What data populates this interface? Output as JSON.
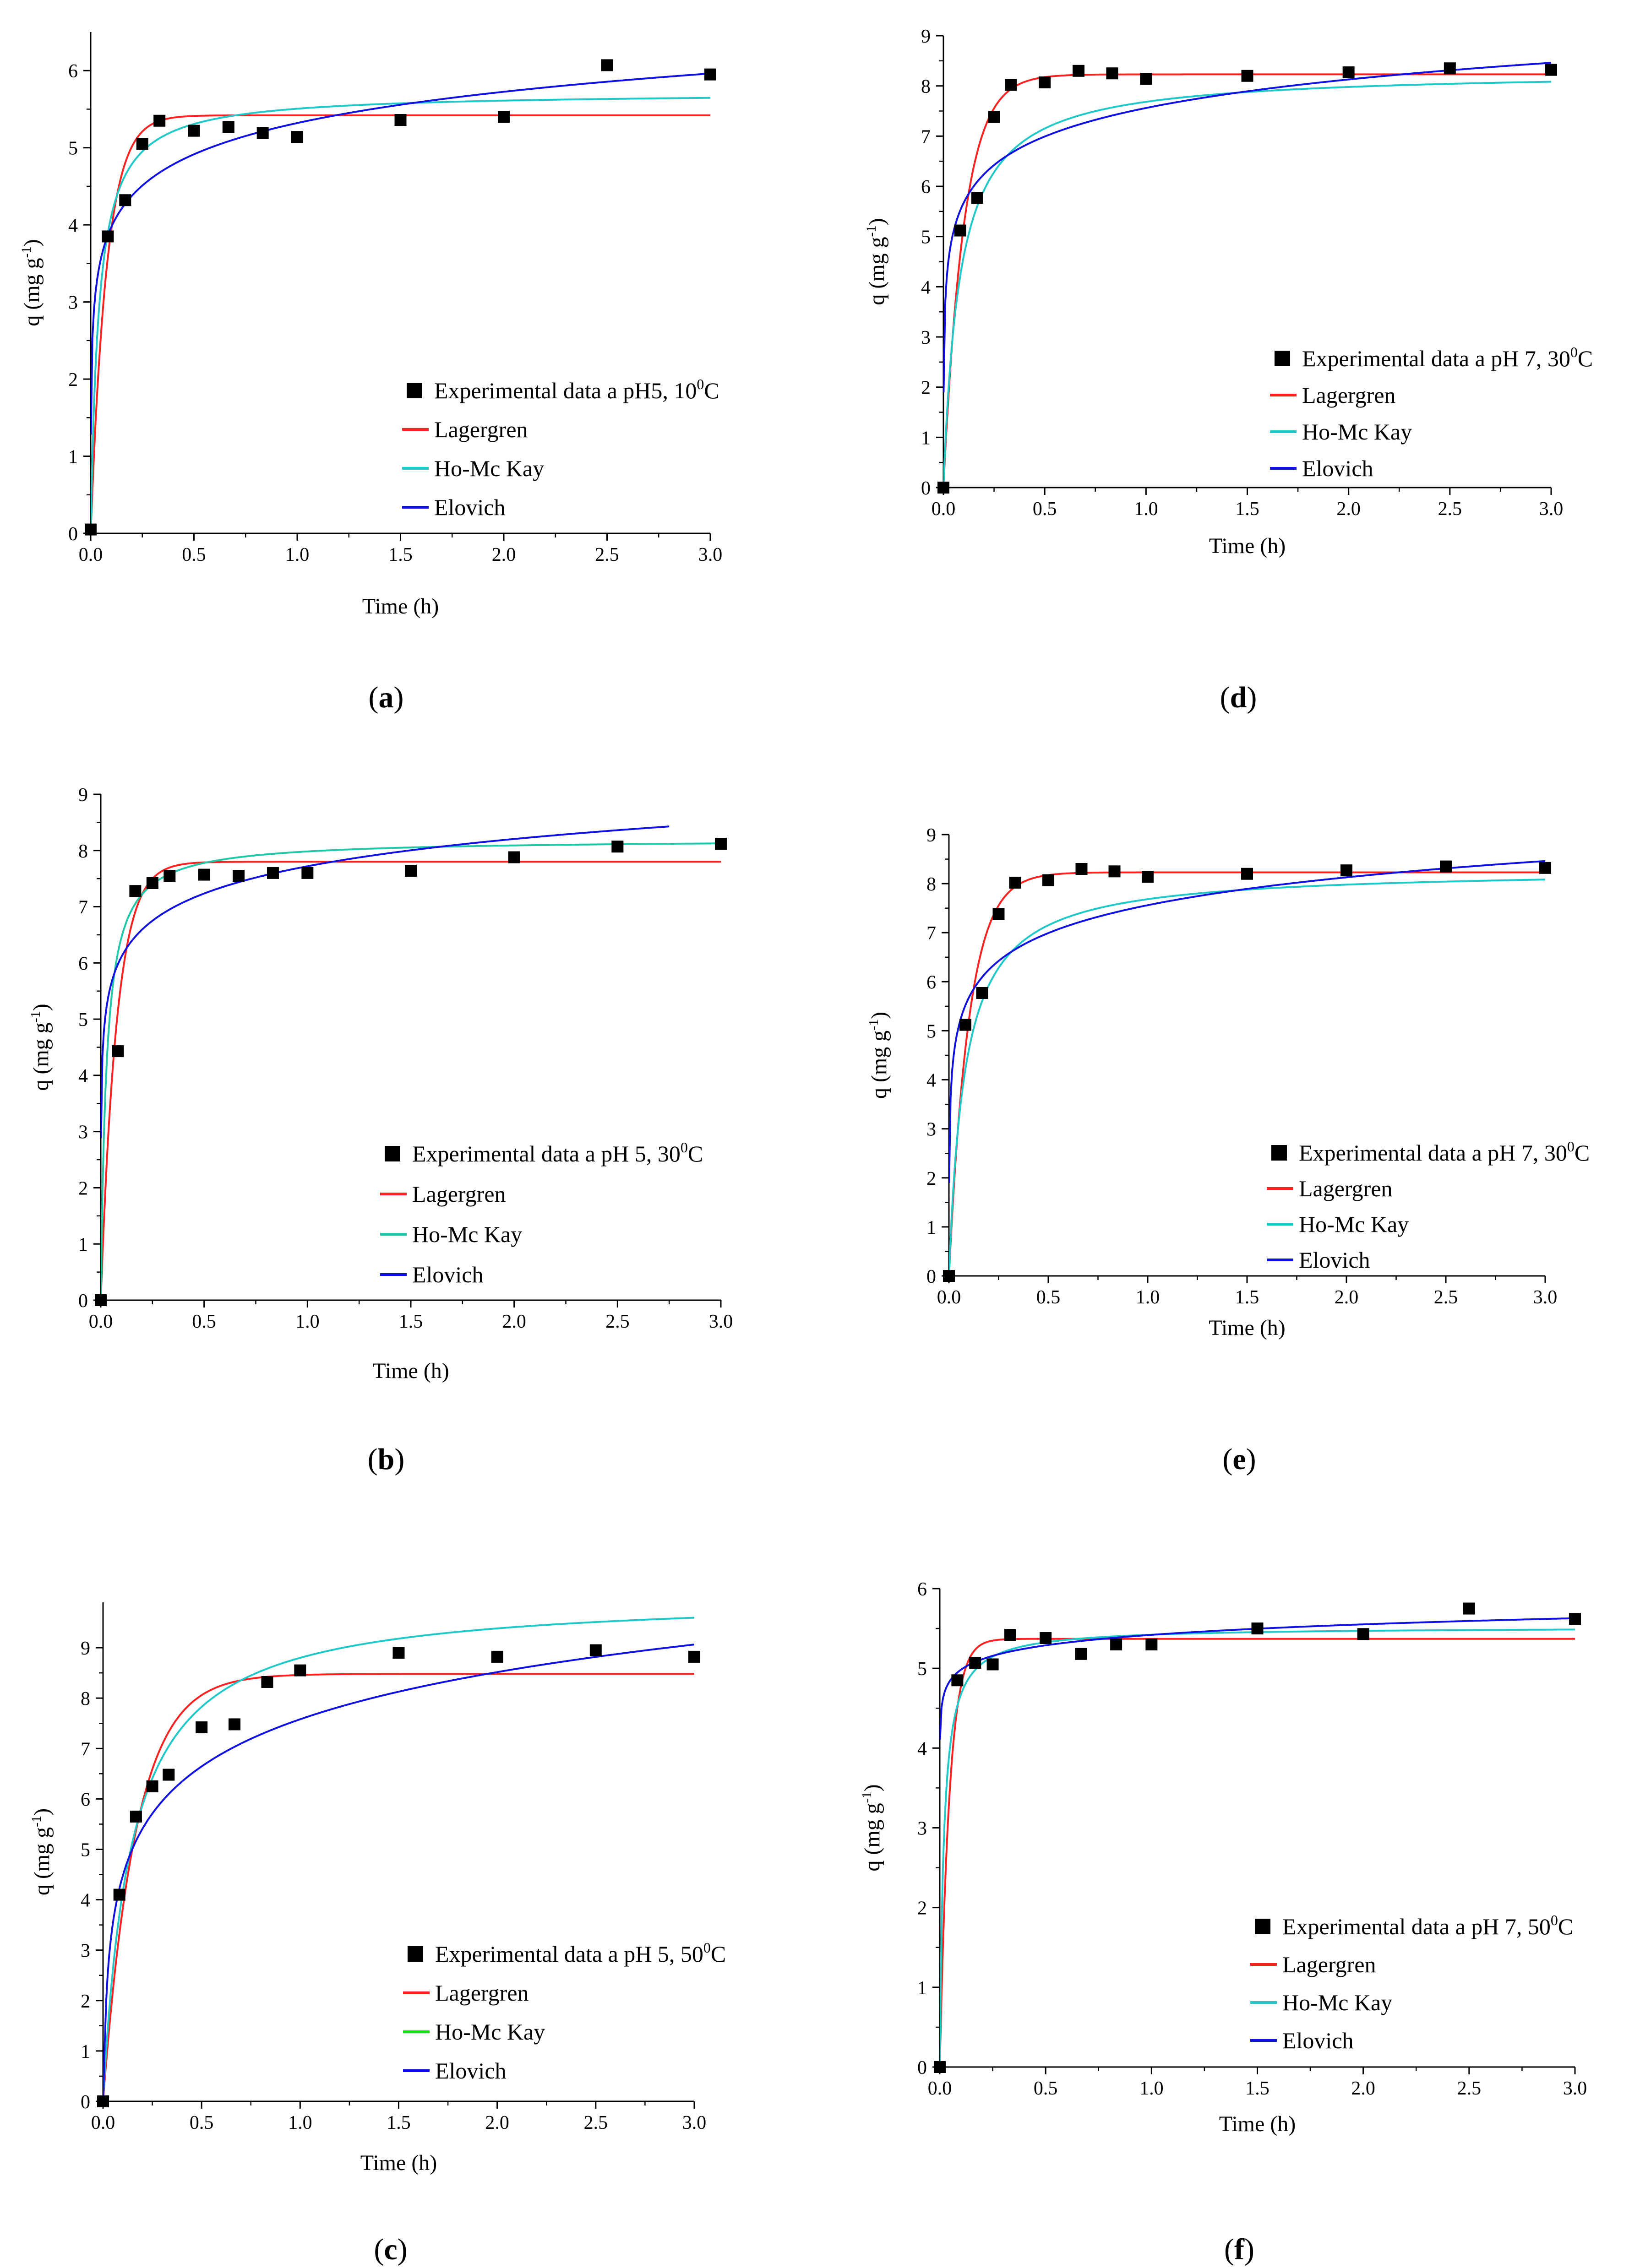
{
  "chart_data": [
    {
      "id": "a",
      "type": "line+scatter",
      "panel_label": "a",
      "xlabel": "Time (h)",
      "ylabel": "q (mg g-1)",
      "ylabel_parts": {
        "main": "q (mg g",
        "sup": "-1",
        "end": ")"
      },
      "xlim": [
        0,
        3
      ],
      "ylim": [
        0,
        6.5
      ],
      "xticks": [
        0,
        0.5,
        1.0,
        1.5,
        2.0,
        2.5,
        3.0
      ],
      "xtick_labels": [
        "0.0",
        "0.5",
        "1.0",
        "1.5",
        "2.0",
        "2.5",
        "3.0"
      ],
      "yticks": [
        0,
        1,
        2,
        3,
        4,
        5,
        6
      ],
      "ytick_labels": [
        "0",
        "1",
        "2",
        "3",
        "4",
        "5",
        "6"
      ],
      "legend_position": "bottom-right",
      "experimental": {
        "label": "Experimental data a pH5, 10°C",
        "label_parts": {
          "main": "Experimental data a pH5, 10",
          "sup": "0",
          "end": "C"
        },
        "x": [
          0,
          0.083,
          0.167,
          0.25,
          0.333,
          0.5,
          0.667,
          0.833,
          1.0,
          1.5,
          2.0,
          2.5,
          3.0
        ],
        "y": [
          0.05,
          3.85,
          4.32,
          5.05,
          5.35,
          5.22,
          5.27,
          5.19,
          5.14,
          5.36,
          5.4,
          6.07,
          5.95
        ]
      },
      "series": [
        {
          "name": "Lagergren",
          "model": "lagergren",
          "color": "#ff2020",
          "qe": 5.42,
          "k": 13,
          "xmax": 3
        },
        {
          "name": "Ho-Mc Kay",
          "model": "ho",
          "color": "#20c8c8",
          "qe": 5.72,
          "k": 4.5,
          "xmax": 3
        },
        {
          "name": "Elovich",
          "model": "elovich",
          "color": "#1010e0",
          "a": 5.32,
          "b": 0.585,
          "xmax": 3
        }
      ]
    },
    {
      "id": "d",
      "type": "line+scatter",
      "panel_label": "d",
      "xlabel": "Time (h)",
      "ylabel": "q (mg g-1)",
      "ylabel_parts": {
        "main": "q (mg g",
        "sup": "-1",
        "end": ")"
      },
      "xlim": [
        0,
        3
      ],
      "ylim": [
        0,
        9
      ],
      "xticks": [
        0,
        0.5,
        1.0,
        1.5,
        2.0,
        2.5,
        3.0
      ],
      "xtick_labels": [
        "0.0",
        "0.5",
        "1.0",
        "1.5",
        "2.0",
        "2.5",
        "3.0"
      ],
      "yticks": [
        0,
        1,
        2,
        3,
        4,
        5,
        6,
        7,
        8,
        9
      ],
      "ytick_labels": [
        "0",
        "1",
        "2",
        "3",
        "4",
        "5",
        "6",
        "7",
        "8",
        "9"
      ],
      "legend_position": "bottom-right",
      "experimental": {
        "label": "Experimental data a pH 7, 30°C",
        "label_parts": {
          "main": "Experimental data a pH 7, 30",
          "sup": "0",
          "end": "C"
        },
        "x": [
          0,
          0.083,
          0.167,
          0.25,
          0.333,
          0.5,
          0.667,
          0.833,
          1.0,
          1.5,
          2.0,
          2.5,
          3.0
        ],
        "y": [
          0.0,
          5.12,
          5.77,
          7.38,
          8.02,
          8.07,
          8.3,
          8.25,
          8.14,
          8.2,
          8.27,
          8.35,
          8.32
        ]
      },
      "series": [
        {
          "name": "Lagergren",
          "model": "lagergren",
          "color": "#ff2020",
          "qe": 8.23,
          "k": 10,
          "xmax": 3
        },
        {
          "name": "Ho-Mc Kay",
          "model": "ho",
          "color": "#20c8c8",
          "qe": 8.3,
          "k": 1.5,
          "xmax": 3
        },
        {
          "name": "Elovich",
          "model": "elovich",
          "color": "#1010e0",
          "a": 7.56,
          "b": 0.82,
          "xmax": 3
        }
      ]
    },
    {
      "id": "b",
      "type": "line+scatter",
      "panel_label": "b",
      "xlabel": "Time (h)",
      "ylabel": "q (mg g-1)",
      "ylabel_parts": {
        "main": "q (mg g",
        "sup": "-1",
        "end": ")"
      },
      "xlim": [
        0,
        3
      ],
      "ylim": [
        0,
        9
      ],
      "xticks": [
        0,
        0.5,
        1.0,
        1.5,
        2.0,
        2.5,
        3.0
      ],
      "xtick_labels": [
        "0.0",
        "0.5",
        "1.0",
        "1.5",
        "2.0",
        "2.5",
        "3.0"
      ],
      "yticks": [
        0,
        1,
        2,
        3,
        4,
        5,
        6,
        7,
        8,
        9
      ],
      "ytick_labels": [
        "0",
        "1",
        "2",
        "3",
        "4",
        "5",
        "6",
        "7",
        "8",
        "9"
      ],
      "legend_position": "bottom-right",
      "experimental": {
        "label": "Experimental data a pH 5, 30°C",
        "label_parts": {
          "main": "Experimental data a pH 5, 30",
          "sup": "0",
          "end": "C"
        },
        "x": [
          0,
          0.083,
          0.167,
          0.25,
          0.333,
          0.5,
          0.667,
          0.833,
          1.0,
          1.5,
          2.0,
          2.5,
          3.0
        ],
        "y": [
          0.0,
          4.43,
          7.28,
          7.42,
          7.55,
          7.57,
          7.55,
          7.6,
          7.6,
          7.64,
          7.88,
          8.07,
          8.12
        ]
      },
      "series": [
        {
          "name": "Lagergren",
          "model": "lagergren",
          "color": "#ff2020",
          "qe": 7.8,
          "k": 13,
          "xmax": 3
        },
        {
          "name": "Ho-Mc Kay",
          "model": "ho",
          "color": "#20c8a8",
          "qe": 8.2,
          "k": 4.5,
          "xmax": 3
        },
        {
          "name": "Elovich",
          "model": "elovich",
          "color": "#1010e0",
          "a": 7.72,
          "b": 0.7,
          "xmax": 2.75
        }
      ]
    },
    {
      "id": "e",
      "type": "line+scatter",
      "panel_label": "e",
      "xlabel": "Time (h)",
      "ylabel": "q (mg g-1)",
      "ylabel_parts": {
        "main": "q (mg g",
        "sup": "-1",
        "end": ")"
      },
      "xlim": [
        0,
        3
      ],
      "ylim": [
        0,
        9
      ],
      "xticks": [
        0,
        0.5,
        1.0,
        1.5,
        2.0,
        2.5,
        3.0
      ],
      "xtick_labels": [
        "0.0",
        "0.5",
        "1.0",
        "1.5",
        "2.0",
        "2.5",
        "3.0"
      ],
      "yticks": [
        0,
        1,
        2,
        3,
        4,
        5,
        6,
        7,
        8,
        9
      ],
      "ytick_labels": [
        "0",
        "1",
        "2",
        "3",
        "4",
        "5",
        "6",
        "7",
        "8",
        "9"
      ],
      "legend_position": "bottom-right",
      "experimental": {
        "label": "Experimental data a pH 7, 30°C",
        "label_parts": {
          "main": "Experimental data a pH 7, 30",
          "sup": "0",
          "end": "C"
        },
        "x": [
          0,
          0.083,
          0.167,
          0.25,
          0.333,
          0.5,
          0.667,
          0.833,
          1.0,
          1.5,
          2.0,
          2.5,
          3.0
        ],
        "y": [
          0.0,
          5.12,
          5.77,
          7.38,
          8.02,
          8.07,
          8.3,
          8.25,
          8.14,
          8.2,
          8.27,
          8.35,
          8.32
        ]
      },
      "series": [
        {
          "name": "Lagergren",
          "model": "lagergren",
          "color": "#ff2020",
          "qe": 8.23,
          "k": 10,
          "xmax": 3
        },
        {
          "name": "Ho-Mc Kay",
          "model": "ho",
          "color": "#20c8c8",
          "qe": 8.3,
          "k": 1.5,
          "xmax": 3
        },
        {
          "name": "Elovich",
          "model": "elovich",
          "color": "#1010e0",
          "a": 7.56,
          "b": 0.82,
          "xmax": 3
        }
      ]
    },
    {
      "id": "c",
      "type": "line+scatter",
      "panel_label": "c",
      "xlabel": "Time (h)",
      "ylabel": "q (mg g-1)",
      "ylabel_parts": {
        "main": "q (mg g",
        "sup": "-1",
        "end": ")"
      },
      "xlim": [
        0,
        3
      ],
      "ylim": [
        0,
        9.9
      ],
      "xticks": [
        0,
        0.5,
        1.0,
        1.5,
        2.0,
        2.5,
        3.0
      ],
      "xtick_labels": [
        "0.0",
        "0.5",
        "1.0",
        "1.5",
        "2.0",
        "2.5",
        "3.0"
      ],
      "yticks": [
        0,
        1,
        2,
        3,
        4,
        5,
        6,
        7,
        8,
        9
      ],
      "ytick_labels": [
        "0",
        "1",
        "2",
        "3",
        "4",
        "5",
        "6",
        "7",
        "8",
        "9"
      ],
      "legend_position": "bottom-right",
      "experimental": {
        "label": "Experimental data a pH 5, 50°C",
        "label_parts": {
          "main": "Experimental data a pH 5, 50",
          "sup": "0",
          "end": "C"
        },
        "x": [
          0,
          0.083,
          0.167,
          0.25,
          0.333,
          0.5,
          0.667,
          0.833,
          1.0,
          1.5,
          2.0,
          2.5,
          3.0
        ],
        "y": [
          0.0,
          4.1,
          5.65,
          6.25,
          6.48,
          7.42,
          7.48,
          8.32,
          8.55,
          8.9,
          8.82,
          8.95,
          8.82
        ]
      },
      "series": [
        {
          "name": "Lagergren",
          "model": "lagergren",
          "color": "#ff2020",
          "qe": 8.48,
          "k": 6,
          "xmax": 3
        },
        {
          "name": "Ho-Mc Kay",
          "model": "ho",
          "color": "#20c8c8",
          "qe": 10.05,
          "k": 0.7,
          "xmax": 3
        },
        {
          "name": "Elovich",
          "model": "elovich",
          "color": "#1010e0",
          "a": 7.58,
          "b": 1.35,
          "xmax": 3
        }
      ],
      "legend_colors": [
        "#ff2020",
        "#20dd20",
        "#1010e0"
      ]
    },
    {
      "id": "f",
      "type": "line+scatter",
      "panel_label": "f",
      "xlabel": "Time (h)",
      "ylabel": "q (mg g-1)",
      "ylabel_parts": {
        "main": "q (mg g",
        "sup": "-1",
        "end": ")"
      },
      "xlim": [
        0,
        3
      ],
      "ylim": [
        0,
        6
      ],
      "xticks": [
        0,
        0.5,
        1.0,
        1.5,
        2.0,
        2.5,
        3.0
      ],
      "xtick_labels": [
        "0.0",
        "0.5",
        "1.0",
        "1.5",
        "2.0",
        "2.5",
        "3.0"
      ],
      "yticks": [
        0,
        1,
        2,
        3,
        4,
        5,
        6
      ],
      "ytick_labels": [
        "0",
        "1",
        "2",
        "3",
        "4",
        "5",
        "6"
      ],
      "legend_position": "bottom-right",
      "experimental": {
        "label": "Experimental data a pH 7, 50°C",
        "label_parts": {
          "main": "Experimental data a pH 7, 50",
          "sup": "0",
          "end": "C"
        },
        "x": [
          0,
          0.083,
          0.167,
          0.25,
          0.333,
          0.5,
          0.667,
          0.833,
          1.0,
          1.5,
          2.0,
          2.5,
          3.0
        ],
        "y": [
          0.0,
          4.85,
          5.07,
          5.05,
          5.42,
          5.38,
          5.18,
          5.3,
          5.3,
          5.5,
          5.43,
          5.75,
          5.62
        ]
      },
      "series": [
        {
          "name": "Lagergren",
          "model": "lagergren",
          "color": "#ff2020",
          "qe": 5.37,
          "k": 22,
          "xmax": 3
        },
        {
          "name": "Ho-Mc Kay",
          "model": "ho",
          "color": "#20c8c8",
          "qe": 5.52,
          "k": 10,
          "xmax": 3
        },
        {
          "name": "Elovich",
          "model": "elovich",
          "color": "#1010e0",
          "a": 5.42,
          "b": 0.19,
          "xmax": 3
        }
      ]
    }
  ]
}
